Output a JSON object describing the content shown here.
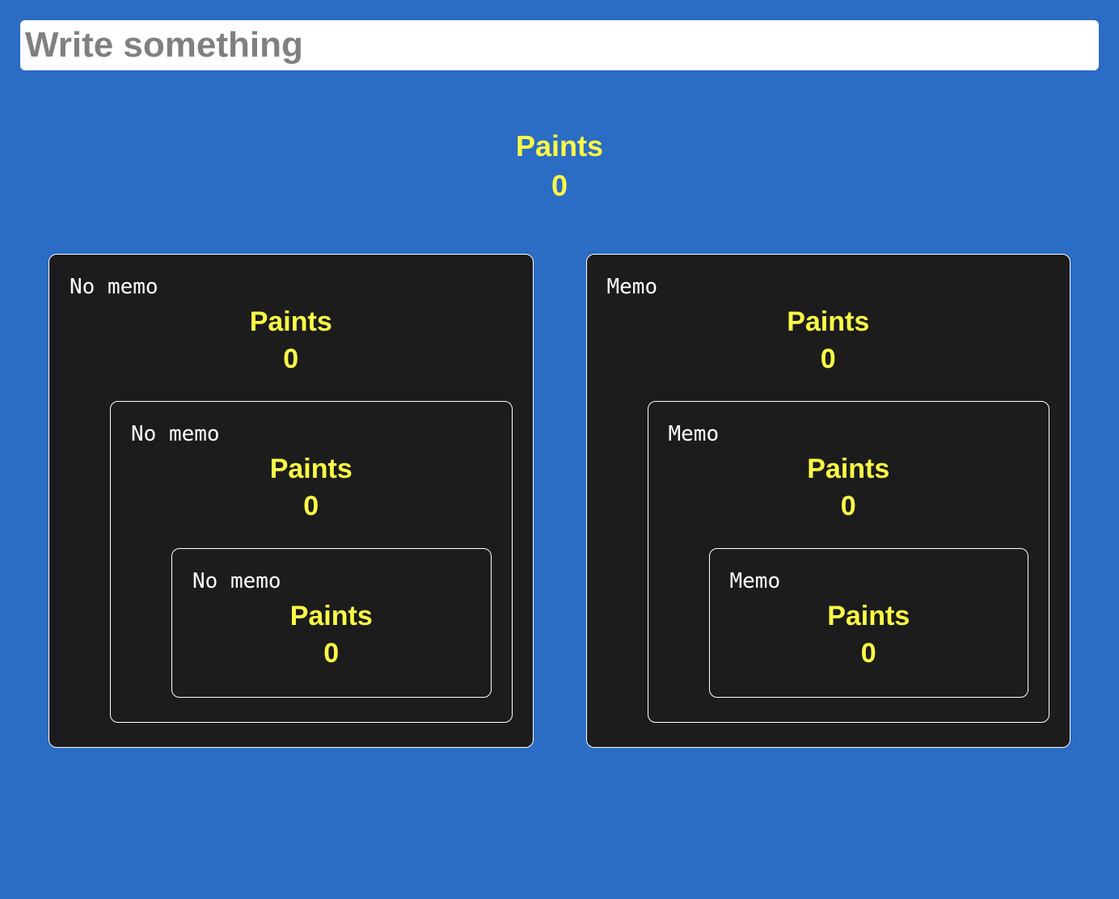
{
  "input": {
    "placeholder": "Write something",
    "value": ""
  },
  "topCounter": {
    "label": "Paints",
    "value": "0"
  },
  "colors": {
    "background": "#2b6cc4",
    "panel_bg": "#1c1c1c",
    "panel_border": "#ffffff",
    "accent": "#fcfd45",
    "input_bg": "#ffffff",
    "placeholder": "#808080",
    "label_text": "#ffffff"
  },
  "left": {
    "label": "No memo",
    "counter": {
      "label": "Paints",
      "value": "0"
    },
    "child": {
      "label": "No memo",
      "counter": {
        "label": "Paints",
        "value": "0"
      },
      "child": {
        "label": "No memo",
        "counter": {
          "label": "Paints",
          "value": "0"
        }
      }
    }
  },
  "right": {
    "label": "Memo",
    "counter": {
      "label": "Paints",
      "value": "0"
    },
    "child": {
      "label": "Memo",
      "counter": {
        "label": "Paints",
        "value": "0"
      },
      "child": {
        "label": "Memo",
        "counter": {
          "label": "Paints",
          "value": "0"
        }
      }
    }
  }
}
